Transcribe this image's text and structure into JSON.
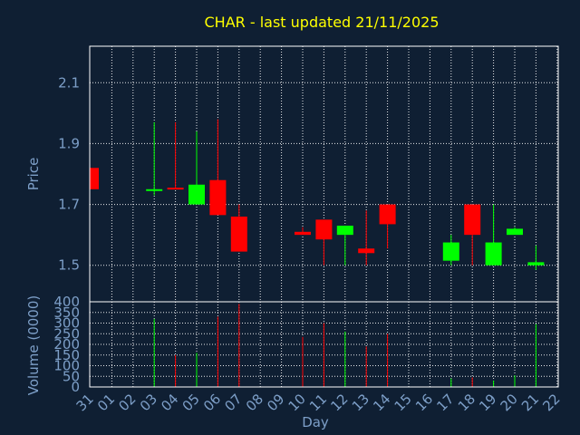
{
  "chart_data": {
    "type": "candlestick",
    "title": "CHAR - last updated 21/11/2025",
    "xlabel": "Day",
    "ylabel": "Price",
    "volume_label": "Volume (0000)",
    "grid": true,
    "colors": {
      "up": "#00ff00",
      "down": "#ff0000",
      "background": "#0f1f33",
      "title": "#ffff00",
      "axis_text": "#7d9fc8"
    },
    "price_ylim": [
      1.38,
      2.22
    ],
    "price_ticks": [
      "1.5",
      "1.7",
      "1.9",
      "2.1"
    ],
    "volume_ylim": [
      0,
      400
    ],
    "volume_ticks": [
      "0",
      "50",
      "100",
      "150",
      "200",
      "250",
      "300",
      "350",
      "400"
    ],
    "x_ticks": [
      "31",
      "01",
      "02",
      "03",
      "04",
      "05",
      "06",
      "07",
      "08",
      "09",
      "10",
      "11",
      "12",
      "13",
      "14",
      "15",
      "16",
      "17",
      "18",
      "19",
      "20",
      "21",
      "22"
    ],
    "candles": [
      {
        "day": "31",
        "open": 1.82,
        "high": 1.82,
        "low": 1.75,
        "close": 1.75,
        "volume": 0
      },
      {
        "day": "03",
        "open": 1.745,
        "high": 1.97,
        "low": 1.73,
        "close": 1.75,
        "volume": 320
      },
      {
        "day": "04",
        "open": 1.755,
        "high": 1.97,
        "low": 1.75,
        "close": 1.75,
        "volume": 150
      },
      {
        "day": "05",
        "open": 1.7,
        "high": 1.94,
        "low": 1.7,
        "close": 1.765,
        "volume": 160
      },
      {
        "day": "06",
        "open": 1.78,
        "high": 1.98,
        "low": 1.665,
        "close": 1.665,
        "volume": 330
      },
      {
        "day": "07",
        "open": 1.66,
        "high": 1.7,
        "low": 1.545,
        "close": 1.545,
        "volume": 390
      },
      {
        "day": "10",
        "open": 1.61,
        "high": 1.625,
        "low": 1.6,
        "close": 1.6,
        "volume": 235
      },
      {
        "day": "11",
        "open": 1.65,
        "high": 1.65,
        "low": 1.5,
        "close": 1.585,
        "volume": 300
      },
      {
        "day": "12",
        "open": 1.6,
        "high": 1.63,
        "low": 1.5,
        "close": 1.63,
        "volume": 260
      },
      {
        "day": "13",
        "open": 1.555,
        "high": 1.68,
        "low": 1.5,
        "close": 1.54,
        "volume": 190
      },
      {
        "day": "14",
        "open": 1.7,
        "high": 1.7,
        "low": 1.555,
        "close": 1.635,
        "volume": 250
      },
      {
        "day": "17",
        "open": 1.515,
        "high": 1.6,
        "low": 1.5,
        "close": 1.575,
        "volume": 40
      },
      {
        "day": "18",
        "open": 1.7,
        "high": 1.7,
        "low": 1.5,
        "close": 1.6,
        "volume": 45
      },
      {
        "day": "19",
        "open": 1.5,
        "high": 1.7,
        "low": 1.5,
        "close": 1.575,
        "volume": 30
      },
      {
        "day": "20",
        "open": 1.6,
        "high": 1.625,
        "low": 1.6,
        "close": 1.62,
        "volume": 55
      },
      {
        "day": "21",
        "open": 1.5,
        "high": 1.565,
        "low": 1.485,
        "close": 1.51,
        "volume": 295
      }
    ]
  }
}
